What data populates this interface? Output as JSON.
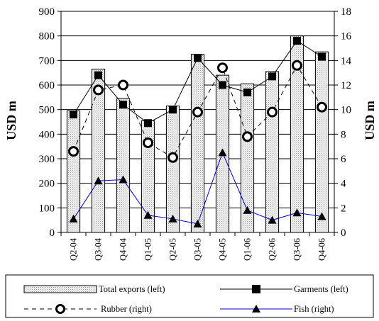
{
  "chart_data": {
    "type": "bar",
    "categories": [
      "Q2-04",
      "Q3-04",
      "Q4-04",
      "Q1-05",
      "Q2-05",
      "Q3-05",
      "Q4-05",
      "Q1-06",
      "Q2-06",
      "Q3-06",
      "Q4-06"
    ],
    "left_axis": {
      "label": "USD m",
      "ylim": [
        0,
        900
      ],
      "ticks": [
        0,
        100,
        200,
        300,
        400,
        500,
        600,
        700,
        800,
        900
      ]
    },
    "right_axis": {
      "label": "USD m",
      "ylim": [
        0,
        18
      ],
      "ticks": [
        0,
        2,
        4,
        6,
        8,
        10,
        12,
        14,
        16,
        18
      ]
    },
    "series": [
      {
        "name": "Total exports (left)",
        "type": "bar",
        "axis": "left",
        "color": "#e6e6e6",
        "values": [
          495,
          665,
          545,
          455,
          515,
          725,
          640,
          605,
          655,
          800,
          735
        ]
      },
      {
        "name": "Garments (left)",
        "type": "line",
        "axis": "left",
        "color": "#000000",
        "marker": "square",
        "line_style": "solid",
        "values": [
          480,
          640,
          520,
          445,
          500,
          710,
          600,
          570,
          635,
          780,
          715
        ]
      },
      {
        "name": "Rubber (right)",
        "type": "line",
        "axis": "right",
        "color": "#000000",
        "marker": "circle",
        "line_style": "dashed",
        "values": [
          6.6,
          11.6,
          12.0,
          7.3,
          6.1,
          9.8,
          13.4,
          7.8,
          9.8,
          13.6,
          10.2
        ]
      },
      {
        "name": "Fish (right)",
        "type": "line",
        "axis": "right",
        "color": "#0000cc",
        "marker": "triangle",
        "line_style": "solid",
        "values": [
          1.1,
          4.2,
          4.3,
          1.4,
          1.1,
          0.7,
          6.5,
          1.8,
          1.0,
          1.6,
          1.3
        ]
      }
    ],
    "grid": true,
    "legend_position": "bottom"
  }
}
